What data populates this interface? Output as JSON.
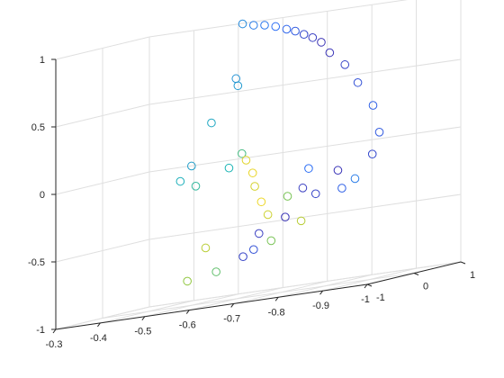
{
  "chart_data": {
    "type": "scatter",
    "projection": "3d",
    "marker": "open-circle",
    "grid": true,
    "colormap": "parula",
    "title": "",
    "xlabel": "",
    "ylabel": "",
    "zlabel": "",
    "x_ticks": [
      -0.3,
      -0.4,
      -0.5,
      -0.6,
      -0.7,
      -0.8,
      -0.9,
      -1
    ],
    "x_tick_labels": [
      "-0.3",
      "-0.4",
      "-0.5",
      "-0.6",
      "-0.7",
      "-0.8",
      "-0.9",
      "-1"
    ],
    "y_ticks": [
      1,
      0,
      -1
    ],
    "y_tick_labels": [
      "1",
      "0",
      "-1"
    ],
    "z_ticks": [
      1,
      0.5,
      0,
      -0.5,
      -1
    ],
    "z_tick_labels": [
      "1",
      "0.5",
      "0",
      "-0.5",
      "-1"
    ],
    "xlim": [
      -0.3,
      -1
    ],
    "ylim": [
      -1,
      1
    ],
    "zlim": [
      -1,
      1
    ],
    "colors": {
      "dark_blue": "#3d26a8",
      "blue": "#2c6ef5",
      "teal": "#1cb5b5",
      "green": "#8fc63c",
      "yellow": "#f5d827"
    },
    "points": [
      {
        "x": -0.52,
        "y": 0.9,
        "z": 1.0,
        "c": 0.35
      },
      {
        "x": -0.55,
        "y": 0.85,
        "z": 0.98,
        "c": 0.3
      },
      {
        "x": -0.58,
        "y": 0.8,
        "z": 0.97,
        "c": 0.28
      },
      {
        "x": -0.61,
        "y": 0.75,
        "z": 0.95,
        "c": 0.25
      },
      {
        "x": -0.64,
        "y": 0.7,
        "z": 0.92,
        "c": 0.22
      },
      {
        "x": -0.67,
        "y": 0.6,
        "z": 0.9,
        "c": 0.18
      },
      {
        "x": -0.7,
        "y": 0.5,
        "z": 0.87,
        "c": 0.12
      },
      {
        "x": -0.73,
        "y": 0.4,
        "z": 0.84,
        "c": 0.08
      },
      {
        "x": -0.76,
        "y": 0.3,
        "z": 0.8,
        "c": 0.04
      },
      {
        "x": -0.8,
        "y": 0.1,
        "z": 0.72,
        "c": 0.05
      },
      {
        "x": -0.85,
        "y": -0.05,
        "z": 0.62,
        "c": 0.1
      },
      {
        "x": -0.9,
        "y": -0.25,
        "z": 0.48,
        "c": 0.15
      },
      {
        "x": -0.95,
        "y": -0.4,
        "z": 0.3,
        "c": 0.2
      },
      {
        "x": -0.98,
        "y": -0.55,
        "z": 0.1,
        "c": 0.18
      },
      {
        "x": -0.98,
        "y": -0.7,
        "z": -0.05,
        "c": 0.12
      },
      {
        "x": -0.5,
        "y": 0.95,
        "z": 0.6,
        "c": 0.38
      },
      {
        "x": -0.52,
        "y": 0.8,
        "z": 0.55,
        "c": 0.4
      },
      {
        "x": -0.45,
        "y": 0.9,
        "z": 0.3,
        "c": 0.45
      },
      {
        "x": -0.4,
        "y": 0.95,
        "z": 0.0,
        "c": 0.42
      },
      {
        "x": -0.38,
        "y": 0.9,
        "z": -0.1,
        "c": 0.48
      },
      {
        "x": -0.42,
        "y": 0.85,
        "z": -0.15,
        "c": 0.55
      },
      {
        "x": -0.5,
        "y": 0.8,
        "z": -0.05,
        "c": 0.5
      },
      {
        "x": -0.55,
        "y": 0.6,
        "z": 0.05,
        "c": 0.6
      },
      {
        "x": -0.57,
        "y": 0.5,
        "z": 0.0,
        "c": 0.95
      },
      {
        "x": -0.59,
        "y": 0.45,
        "z": -0.1,
        "c": 0.97
      },
      {
        "x": -0.6,
        "y": 0.4,
        "z": -0.2,
        "c": 0.92
      },
      {
        "x": -0.62,
        "y": 0.35,
        "z": -0.32,
        "c": 0.98
      },
      {
        "x": -0.64,
        "y": 0.3,
        "z": -0.42,
        "c": 0.9
      },
      {
        "x": -0.5,
        "y": 0.3,
        "z": -0.6,
        "c": 0.85
      },
      {
        "x": -0.48,
        "y": 0.1,
        "z": -0.82,
        "c": 0.75
      },
      {
        "x": -0.55,
        "y": 0.05,
        "z": -0.78,
        "c": 0.65
      },
      {
        "x": -0.6,
        "y": 0.15,
        "z": -0.7,
        "c": 0.1
      },
      {
        "x": -0.62,
        "y": 0.3,
        "z": -0.55,
        "c": 0.08
      },
      {
        "x": -0.7,
        "y": 0.1,
        "z": -0.45,
        "c": 0.05
      },
      {
        "x": -0.7,
        "y": 0.15,
        "z": -0.3,
        "c": 0.7
      },
      {
        "x": -0.75,
        "y": 0.0,
        "z": -0.25,
        "c": 0.08
      },
      {
        "x": -0.8,
        "y": -0.2,
        "z": -0.3,
        "c": 0.1
      },
      {
        "x": -0.85,
        "y": -0.2,
        "z": -0.15,
        "c": 0.05
      },
      {
        "x": -0.88,
        "y": -0.4,
        "z": -0.28,
        "c": 0.2
      },
      {
        "x": -0.8,
        "y": -0.35,
        "z": -0.1,
        "c": 0.25
      },
      {
        "x": -0.92,
        "y": -0.5,
        "z": -0.22,
        "c": 0.3
      },
      {
        "x": -0.7,
        "y": -0.2,
        "z": -0.6,
        "c": 0.7
      },
      {
        "x": -0.65,
        "y": -0.1,
        "z": -0.65,
        "c": 0.15
      },
      {
        "x": -0.72,
        "y": 0.25,
        "z": -0.5,
        "c": 0.85
      }
    ]
  }
}
